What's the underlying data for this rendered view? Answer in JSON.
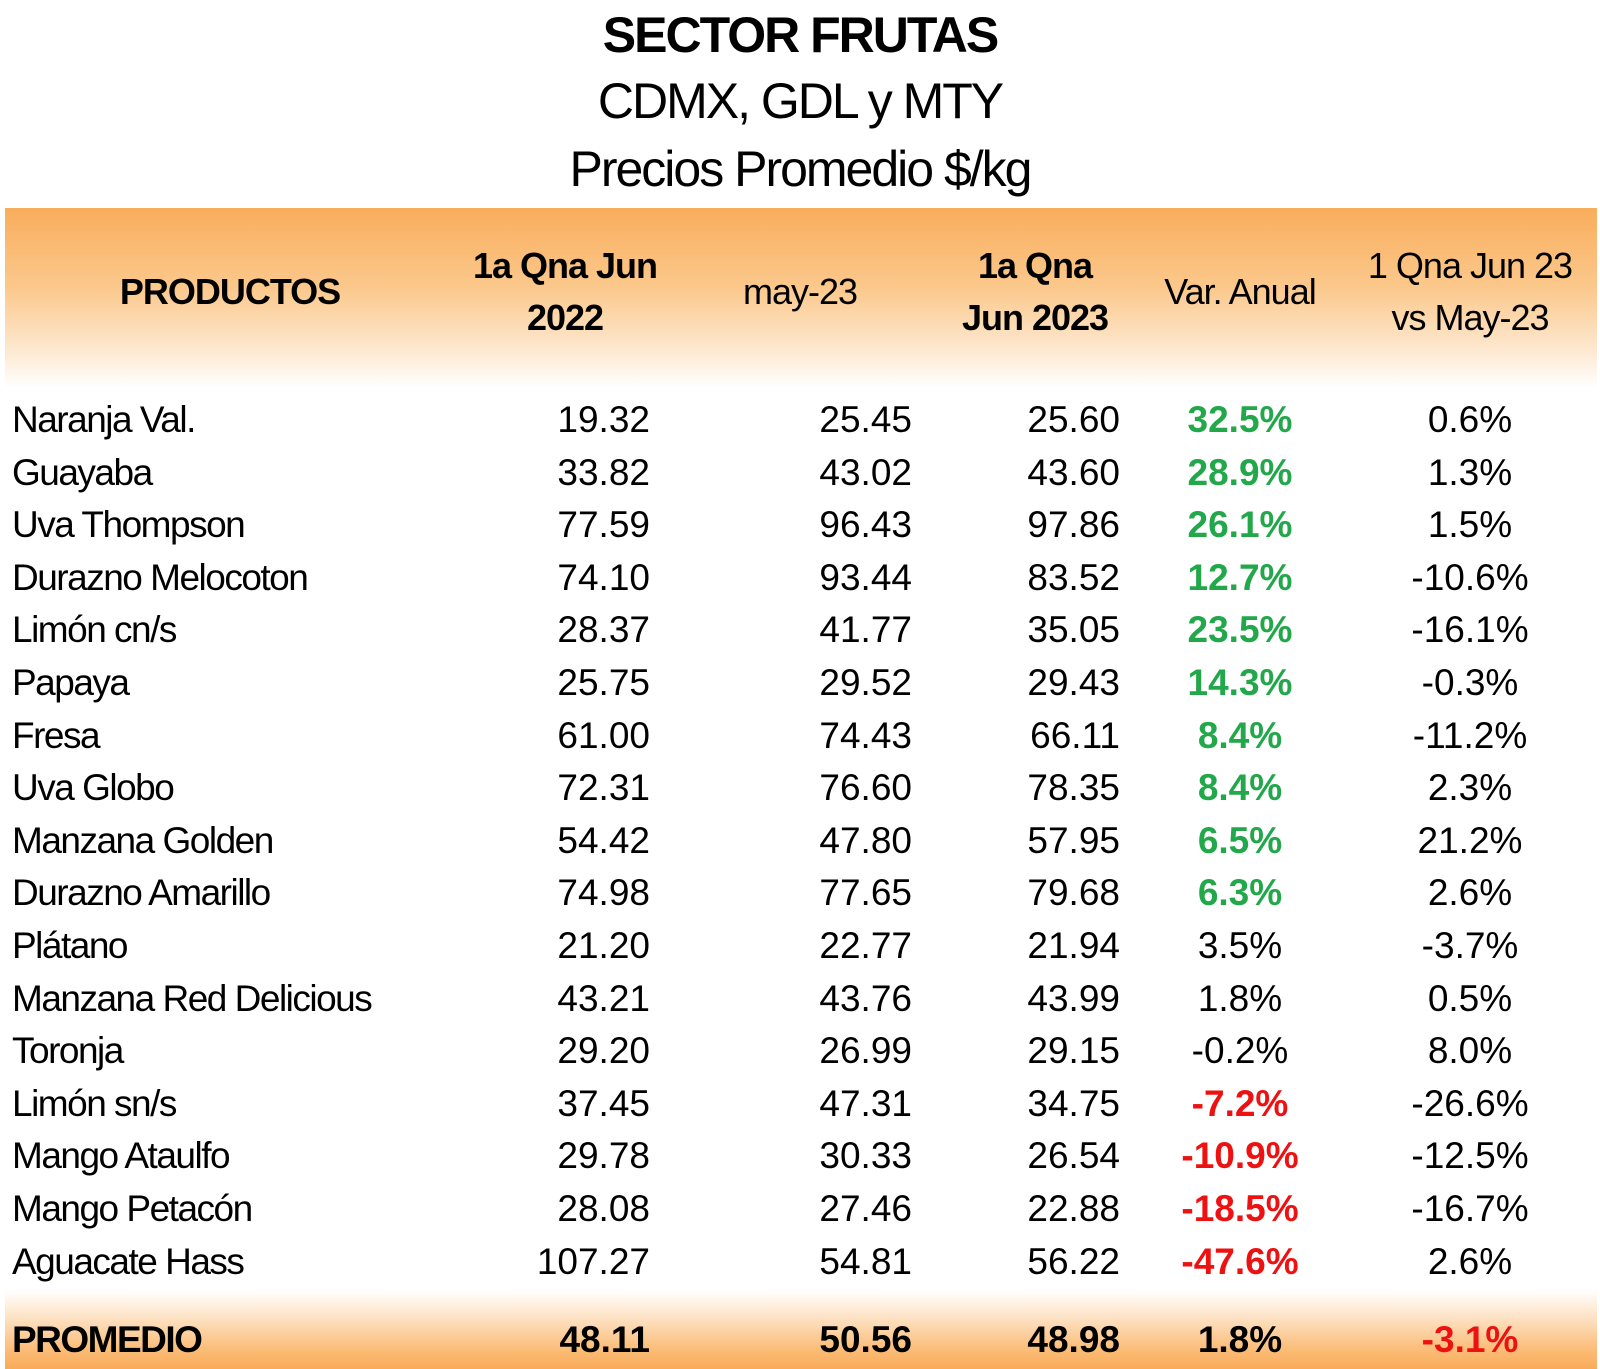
{
  "title": {
    "line1": "SECTOR FRUTAS",
    "line2": "CDMX, GDL y MTY",
    "line3": "Precios Promedio $/kg"
  },
  "table": {
    "headers": {
      "productos": "PRODUCTOS",
      "col1_a": "1a Qna Jun",
      "col1_b": "2022",
      "col2": "may-23",
      "col3_a": "1a Qna",
      "col3_b": "Jun 2023",
      "col4": "Var. Anual",
      "col5_a": "1 Qna Jun 23",
      "col5_b": "vs May-23"
    },
    "rows": [
      {
        "product": "Naranja Val.",
        "qna_jun_2022": "19.32",
        "may_23": "25.45",
        "qna_jun_2023": "25.60",
        "var_anual": "32.5%",
        "var_color": "green",
        "vs_may": "0.6%"
      },
      {
        "product": "Guayaba",
        "qna_jun_2022": "33.82",
        "may_23": "43.02",
        "qna_jun_2023": "43.60",
        "var_anual": "28.9%",
        "var_color": "green",
        "vs_may": "1.3%"
      },
      {
        "product": "Uva Thompson",
        "qna_jun_2022": "77.59",
        "may_23": "96.43",
        "qna_jun_2023": "97.86",
        "var_anual": "26.1%",
        "var_color": "green",
        "vs_may": "1.5%"
      },
      {
        "product": "Durazno Melocoton",
        "qna_jun_2022": "74.10",
        "may_23": "93.44",
        "qna_jun_2023": "83.52",
        "var_anual": "12.7%",
        "var_color": "green",
        "vs_may": "-10.6%"
      },
      {
        "product": "Limón cn/s",
        "qna_jun_2022": "28.37",
        "may_23": "41.77",
        "qna_jun_2023": "35.05",
        "var_anual": "23.5%",
        "var_color": "green",
        "vs_may": "-16.1%"
      },
      {
        "product": "Papaya",
        "qna_jun_2022": "25.75",
        "may_23": "29.52",
        "qna_jun_2023": "29.43",
        "var_anual": "14.3%",
        "var_color": "green",
        "vs_may": "-0.3%"
      },
      {
        "product": "Fresa",
        "qna_jun_2022": "61.00",
        "may_23": "74.43",
        "qna_jun_2023": "66.11",
        "var_anual": "8.4%",
        "var_color": "green",
        "vs_may": "-11.2%"
      },
      {
        "product": "Uva Globo",
        "qna_jun_2022": "72.31",
        "may_23": "76.60",
        "qna_jun_2023": "78.35",
        "var_anual": "8.4%",
        "var_color": "green",
        "vs_may": "2.3%"
      },
      {
        "product": "Manzana Golden",
        "qna_jun_2022": "54.42",
        "may_23": "47.80",
        "qna_jun_2023": "57.95",
        "var_anual": "6.5%",
        "var_color": "green",
        "vs_may": "21.2%"
      },
      {
        "product": "Durazno Amarillo",
        "qna_jun_2022": "74.98",
        "may_23": "77.65",
        "qna_jun_2023": "79.68",
        "var_anual": "6.3%",
        "var_color": "green",
        "vs_may": "2.6%"
      },
      {
        "product": "Plátano",
        "qna_jun_2022": "21.20",
        "may_23": "22.77",
        "qna_jun_2023": "21.94",
        "var_anual": "3.5%",
        "var_color": "black",
        "vs_may": "-3.7%"
      },
      {
        "product": "Manzana Red Delicious",
        "qna_jun_2022": "43.21",
        "may_23": "43.76",
        "qna_jun_2023": "43.99",
        "var_anual": "1.8%",
        "var_color": "black",
        "vs_may": "0.5%"
      },
      {
        "product": "Toronja",
        "qna_jun_2022": "29.20",
        "may_23": "26.99",
        "qna_jun_2023": "29.15",
        "var_anual": "-0.2%",
        "var_color": "black",
        "vs_may": "8.0%"
      },
      {
        "product": "Limón sn/s",
        "qna_jun_2022": "37.45",
        "may_23": "47.31",
        "qna_jun_2023": "34.75",
        "var_anual": "-7.2%",
        "var_color": "red",
        "vs_may": "-26.6%"
      },
      {
        "product": "Mango Ataulfo",
        "qna_jun_2022": "29.78",
        "may_23": "30.33",
        "qna_jun_2023": "26.54",
        "var_anual": "-10.9%",
        "var_color": "red",
        "vs_may": "-12.5%"
      },
      {
        "product": "Mango Petacón",
        "qna_jun_2022": "28.08",
        "may_23": "27.46",
        "qna_jun_2023": "22.88",
        "var_anual": "-18.5%",
        "var_color": "red",
        "vs_may": "-16.7%"
      },
      {
        "product": "Aguacate Hass",
        "qna_jun_2022": "107.27",
        "may_23": "54.81",
        "qna_jun_2023": "56.22",
        "var_anual": "-47.6%",
        "var_color": "red",
        "vs_may": "2.6%"
      }
    ],
    "footer": {
      "label": "PROMEDIO",
      "qna_jun_2022": "48.11",
      "may_23": "50.56",
      "qna_jun_2023": "48.98",
      "var_anual": "1.8%",
      "vs_may": "-3.1%",
      "vs_may_color": "red"
    }
  },
  "colors": {
    "header_band": "#f9ad5c",
    "positive": "#22a84a",
    "negative": "#ee1111"
  }
}
